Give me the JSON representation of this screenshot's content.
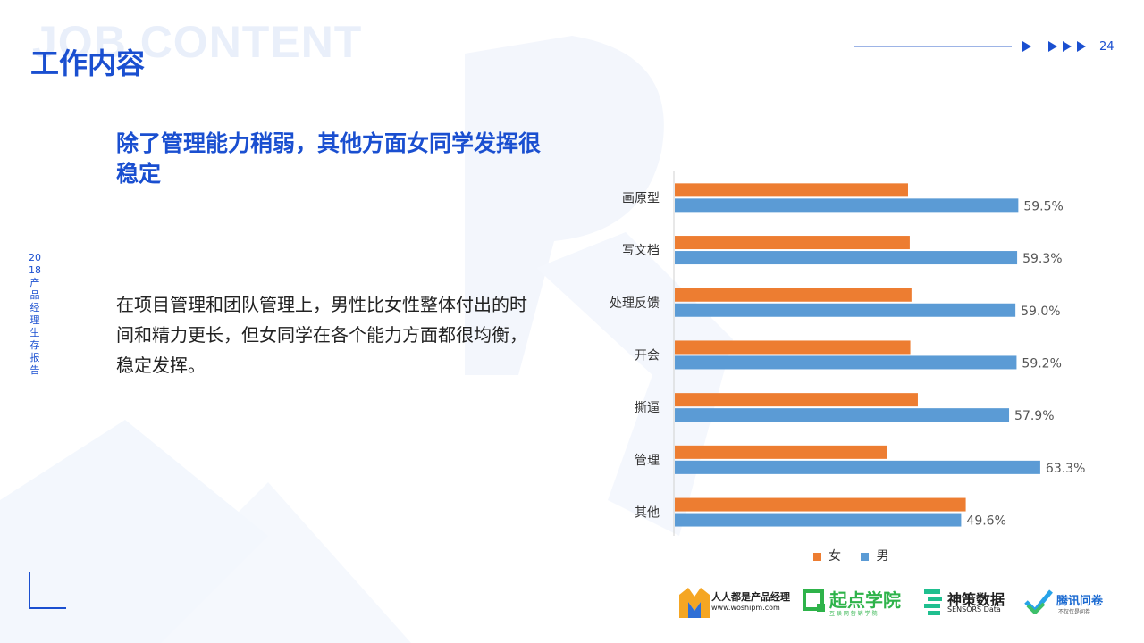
{
  "header": {
    "watermark": "JOB CONTENT",
    "title": "工作内容",
    "page_number": "24"
  },
  "side_label": "2018产品经理生存报告",
  "headline": "除了管理能力稍弱，其他方面女同学发挥很稳定",
  "body": "在项目管理和团队管理上，男性比女性整体付出的时间和精力更长，但女同学在各个能力方面都很均衡，稳定发挥。",
  "colors": {
    "accent": "#1a4fd0",
    "female": "#ed7d31",
    "male": "#5b9bd5"
  },
  "chart_data": {
    "type": "bar",
    "orientation": "horizontal",
    "categories": [
      "画原型",
      "写文档",
      "处理反馈",
      "开会",
      "撕逼",
      "管理",
      "其他"
    ],
    "series": [
      {
        "name": "女",
        "values": [
          40.4,
          40.7,
          41.0,
          40.8,
          42.1,
          36.7,
          50.4
        ]
      },
      {
        "name": "男",
        "values": [
          59.5,
          59.3,
          59.0,
          59.2,
          57.9,
          63.3,
          49.6
        ]
      }
    ],
    "data_labels": [
      "59.5%",
      "59.3%",
      "59.0%",
      "59.2%",
      "57.9%",
      "63.3%",
      "49.6%"
    ],
    "xlim": [
      0,
      100
    ],
    "grid": false,
    "legend_position": "bottom"
  },
  "logos": [
    {
      "name": "人人都是产品经理",
      "sub": "www.woshipm.com"
    },
    {
      "name": "起点学院",
      "sub": "互 联 网 营 销 学 院"
    },
    {
      "name": "神策数据",
      "sub": "SENSORS Data"
    },
    {
      "name": "腾讯问卷",
      "sub": "不仅仅是问卷"
    }
  ]
}
